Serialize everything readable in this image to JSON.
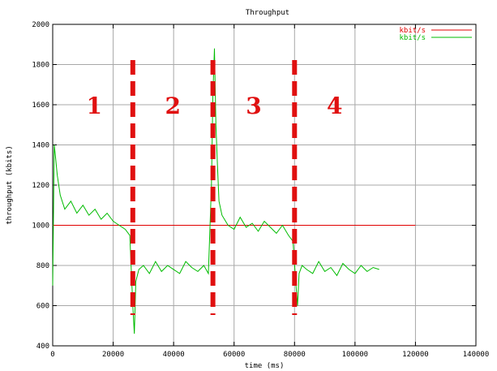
{
  "chart_data": {
    "type": "line",
    "title": "Throughput",
    "xlabel": "time (ms)",
    "ylabel": "throughput (kbits)",
    "xlim": [
      0,
      140000
    ],
    "ylim": [
      400,
      2000
    ],
    "xticks": [
      0,
      20000,
      40000,
      60000,
      80000,
      100000,
      120000,
      140000
    ],
    "yticks": [
      400,
      600,
      800,
      1000,
      1200,
      1400,
      1600,
      1800,
      2000
    ],
    "grid": true,
    "legend_position": "top-right",
    "series": [
      {
        "name": "kbit/s",
        "color": "#e00000",
        "x": [
          0,
          10000,
          20000,
          30000,
          40000,
          50000,
          60000,
          70000,
          80000,
          90000,
          100000,
          110000,
          120000
        ],
        "y": [
          1000,
          1000,
          1000,
          1000,
          1000,
          1000,
          1000,
          1000,
          1000,
          1000,
          1000,
          1000,
          1000
        ]
      },
      {
        "name": "kbit/s",
        "color": "#00bb00",
        "x": [
          0,
          500,
          1000,
          1500,
          2500,
          4000,
          6000,
          8000,
          10000,
          12000,
          14000,
          16000,
          18000,
          20000,
          22000,
          24000,
          25500,
          26500,
          27000,
          27500,
          28500,
          30000,
          32000,
          34000,
          36000,
          38000,
          40000,
          42000,
          44000,
          46000,
          48000,
          50000,
          51500,
          52500,
          53000,
          53500,
          54000,
          54500,
          55000,
          56000,
          58000,
          60000,
          62000,
          64000,
          66000,
          68000,
          70000,
          72000,
          74000,
          76000,
          78000,
          79500,
          80500,
          81000,
          81500,
          82500,
          84000,
          86000,
          88000,
          90000,
          92000,
          94000,
          96000,
          98000,
          100000,
          102000,
          104000,
          106000,
          108000
        ],
        "y": [
          700,
          1400,
          1330,
          1250,
          1150,
          1080,
          1120,
          1060,
          1100,
          1050,
          1080,
          1030,
          1060,
          1020,
          1000,
          980,
          950,
          600,
          460,
          720,
          780,
          800,
          760,
          820,
          770,
          800,
          780,
          760,
          820,
          790,
          770,
          800,
          760,
          1200,
          1650,
          1880,
          1500,
          1300,
          1120,
          1050,
          1000,
          980,
          1040,
          990,
          1010,
          970,
          1020,
          990,
          960,
          1000,
          950,
          920,
          700,
          600,
          760,
          800,
          780,
          760,
          820,
          770,
          790,
          750,
          810,
          780,
          760,
          800,
          770,
          790,
          780
        ]
      }
    ],
    "phase_boundaries": [
      26500,
      53000,
      80000
    ],
    "phase_labels": [
      "1",
      "2",
      "3",
      "4"
    ]
  }
}
